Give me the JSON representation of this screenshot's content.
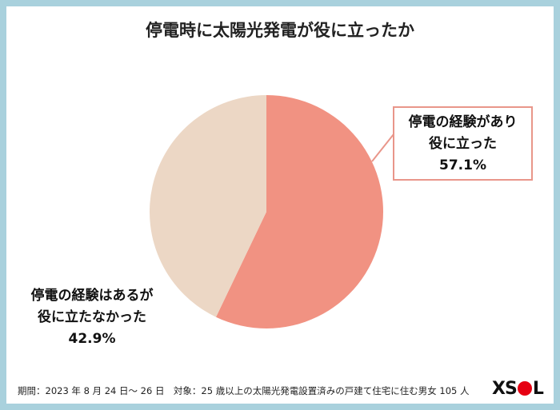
{
  "chart_data": {
    "type": "pie",
    "title": "停電時に太陽光発電が役に立ったか",
    "slices": [
      {
        "label_line1": "停電の経験があり",
        "label_line2": "役に立った",
        "value": 57.1,
        "value_label": "57.1%",
        "color": "#f19282"
      },
      {
        "label_line1": "停電の経験はあるが",
        "label_line2": "役に立たなかった",
        "value": 42.9,
        "value_label": "42.9%",
        "color": "#ecd7c5"
      }
    ],
    "start_angle": "12 o'clock",
    "direction": "clockwise"
  },
  "footer": "期間：2023 年 8 月 24 日～ 26 日　対象：25 歳以上の太陽光発電設置済みの戸建て住宅に住む男女 105 人",
  "logo": {
    "left": "XS",
    "right": "L",
    "dot_color": "#e60012"
  }
}
